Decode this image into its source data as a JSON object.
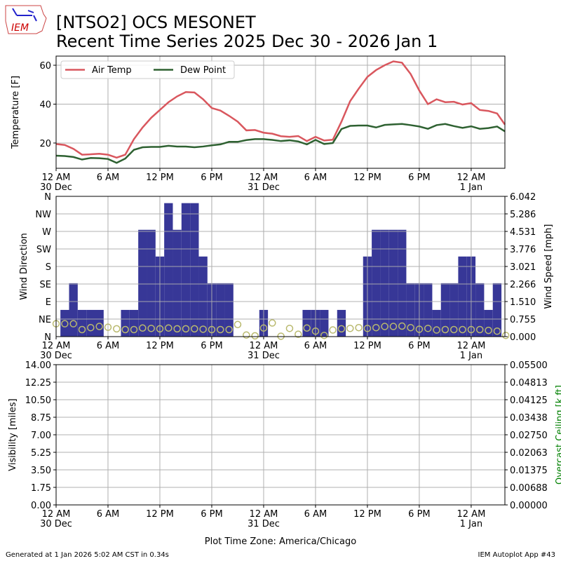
{
  "header": {
    "logo_text": "IEM",
    "title_line1": "[NTSO2] OCS MESONET",
    "title_line2": "Recent Time Series 2025 Dec 30 - 2026 Jan 1"
  },
  "footer": {
    "generated": "Generated at 1 Jan 2026 5:02 AM CST in 0.34s",
    "app": "IEM Autoplot App #43",
    "timezone_label": "Plot Time Zone: America/Chicago"
  },
  "x_axis": {
    "ticks": [
      {
        "hour": 0,
        "label": "12 AM",
        "sub": "30 Dec"
      },
      {
        "hour": 6,
        "label": "6 AM",
        "sub": ""
      },
      {
        "hour": 12,
        "label": "12 PM",
        "sub": ""
      },
      {
        "hour": 18,
        "label": "6 PM",
        "sub": ""
      },
      {
        "hour": 24,
        "label": "12 AM",
        "sub": "31 Dec"
      },
      {
        "hour": 30,
        "label": "6 AM",
        "sub": ""
      },
      {
        "hour": 36,
        "label": "12 PM",
        "sub": ""
      },
      {
        "hour": 42,
        "label": "6 PM",
        "sub": ""
      },
      {
        "hour": 48,
        "label": "12 AM",
        "sub": "1 Jan"
      }
    ],
    "range_hours": [
      0,
      51.9
    ]
  },
  "colors": {
    "air_temp": "#d9575e",
    "dew_point": "#2e6131",
    "wind_bar": "#373797",
    "wind_dir": "#b9b96e",
    "ceiling_label": "#008000"
  },
  "chart_data": [
    {
      "type": "line",
      "ylabel": "Temperature [F]",
      "ylim": [
        7,
        64.7
      ],
      "yticks": [
        20,
        40,
        60
      ],
      "legend": "top-left",
      "x_hours": [
        0,
        1,
        2,
        3,
        4,
        5,
        6,
        7,
        8,
        9,
        10,
        11,
        12,
        13,
        14,
        15,
        16,
        17,
        18,
        19,
        20,
        21,
        22,
        23,
        24,
        25,
        26,
        27,
        28,
        29,
        30,
        31,
        32,
        33,
        34,
        35,
        36,
        37,
        38,
        39,
        40,
        41,
        42,
        43,
        44,
        45,
        46,
        47,
        48,
        49,
        50,
        51,
        52
      ],
      "series": [
        {
          "name": "Air Temp",
          "values": [
            19.5,
            19,
            17,
            14,
            14.2,
            14.5,
            14,
            12.5,
            14,
            22,
            28,
            33,
            37,
            41,
            44,
            46.2,
            46,
            42.5,
            38,
            36.7,
            34,
            31,
            26.5,
            26.7,
            25.3,
            24.8,
            23.5,
            23.2,
            23.6,
            21,
            23.2,
            21.3,
            21.7,
            31,
            41.5,
            48,
            54,
            57.5,
            60,
            62,
            61.3,
            55.5,
            47,
            40,
            42.5,
            41,
            41.2,
            39.8,
            40.5,
            37,
            36.5,
            35.2,
            29.5
          ]
        },
        {
          "name": "Dew Point",
          "values": [
            13.5,
            13.3,
            12.8,
            11.5,
            12.3,
            12.2,
            11.8,
            9.8,
            12,
            16.5,
            17.8,
            18,
            18,
            18.6,
            18.2,
            18.2,
            17.8,
            18.2,
            18.8,
            19.3,
            20.6,
            20.6,
            21.5,
            22,
            22,
            21.6,
            21,
            21.4,
            20.8,
            19.3,
            21.6,
            19.5,
            20,
            27.2,
            28.8,
            29,
            29,
            28,
            29.3,
            29.6,
            29.8,
            29.2,
            28.5,
            27.3,
            29.2,
            29.8,
            28.7,
            27.8,
            28.6,
            27.3,
            27.7,
            28.5,
            26
          ]
        }
      ]
    },
    {
      "type": "bar",
      "ylabel": "Wind Direction",
      "y2label": "Wind Speed [mph]",
      "dir_ticks": [
        "N",
        "NE",
        "E",
        "SE",
        "S",
        "SW",
        "W",
        "NW",
        "N"
      ],
      "ylim_dir": [
        0,
        360
      ],
      "ylim_speed": [
        0,
        6.042
      ],
      "speed_ticks": [
        "0.000",
        "0.755",
        "1.510",
        "2.266",
        "3.021",
        "3.776",
        "4.531",
        "5.286",
        "6.042"
      ],
      "x_hours": [
        0,
        1,
        2,
        3,
        4,
        5,
        6,
        7,
        8,
        9,
        10,
        11,
        12,
        13,
        14,
        15,
        16,
        17,
        18,
        19,
        20,
        21,
        22,
        23,
        24,
        25,
        26,
        27,
        28,
        29,
        30,
        31,
        32,
        33,
        34,
        35,
        36,
        37,
        38,
        39,
        40,
        41,
        42,
        43,
        44,
        45,
        46,
        47,
        48,
        49,
        50,
        51,
        52
      ],
      "speed_mph": [
        0,
        1.15,
        2.3,
        1.15,
        1.15,
        1.15,
        0,
        0,
        1.15,
        1.15,
        4.6,
        4.6,
        3.45,
        5.75,
        4.6,
        5.75,
        5.75,
        3.45,
        2.3,
        2.3,
        2.3,
        0,
        0,
        0,
        1.15,
        0,
        0,
        0,
        0,
        1.15,
        1.15,
        1.15,
        0,
        1.15,
        0,
        0,
        3.45,
        4.6,
        4.6,
        4.6,
        4.6,
        2.3,
        2.3,
        2.3,
        1.15,
        2.3,
        2.3,
        3.45,
        3.45,
        2.3,
        1.15,
        2.3,
        0
      ],
      "direction_deg": [
        33,
        33,
        33,
        18,
        23,
        26,
        24,
        20,
        18,
        18,
        22,
        21,
        20,
        22,
        20,
        20,
        20,
        19,
        18,
        18,
        18,
        31,
        4,
        2,
        22,
        35,
        1,
        21,
        6,
        22,
        14,
        3,
        17,
        20,
        21,
        23,
        21,
        23,
        26,
        26,
        27,
        23,
        19,
        21,
        17,
        18,
        18,
        18,
        18,
        18,
        16,
        14,
        3
      ]
    },
    {
      "type": "line",
      "ylabel": "Visibility [miles]",
      "y2label": "Overcast Ceiling [k ft]",
      "ylim": [
        0,
        14
      ],
      "yticks": [
        "0.00",
        "1.75",
        "3.50",
        "5.25",
        "7.00",
        "8.75",
        "10.50",
        "12.25",
        "14.00"
      ],
      "y2lim": [
        0,
        0.055
      ],
      "y2ticks": [
        "0.00000",
        "0.00688",
        "0.01375",
        "0.02063",
        "0.02750",
        "0.03438",
        "0.04125",
        "0.04813",
        "0.05500"
      ],
      "series": []
    }
  ]
}
